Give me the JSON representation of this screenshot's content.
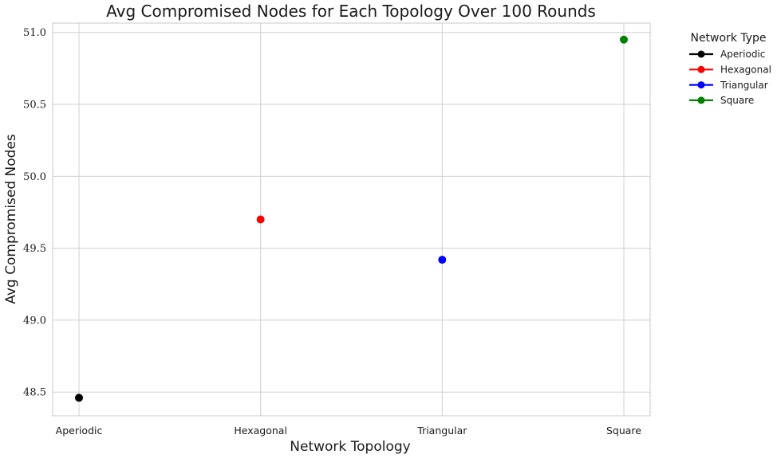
{
  "chart_data": {
    "type": "scatter",
    "title": "Avg Compromised Nodes for Each Topology Over 100 Rounds",
    "xlabel": "Network Topology",
    "ylabel": "Avg Compromised Nodes",
    "categories": [
      "Aperiodic",
      "Hexagonal",
      "Triangular",
      "Square"
    ],
    "yticks": [
      "48.5",
      "49.0",
      "49.5",
      "50.0",
      "50.5",
      "51.0"
    ],
    "ylim": [
      48.335,
      51.065
    ],
    "grid": true,
    "series": [
      {
        "name": "Aperiodic",
        "color": "#000000",
        "x": "Aperiodic",
        "y": 48.46
      },
      {
        "name": "Hexagonal",
        "color": "#ff0000",
        "x": "Hexagonal",
        "y": 49.7
      },
      {
        "name": "Triangular",
        "color": "#0000ff",
        "x": "Triangular",
        "y": 49.42
      },
      {
        "name": "Square",
        "color": "#008000",
        "x": "Square",
        "y": 50.95
      }
    ],
    "legend": {
      "title": "Network Type",
      "placement": "outside-top-right"
    }
  }
}
